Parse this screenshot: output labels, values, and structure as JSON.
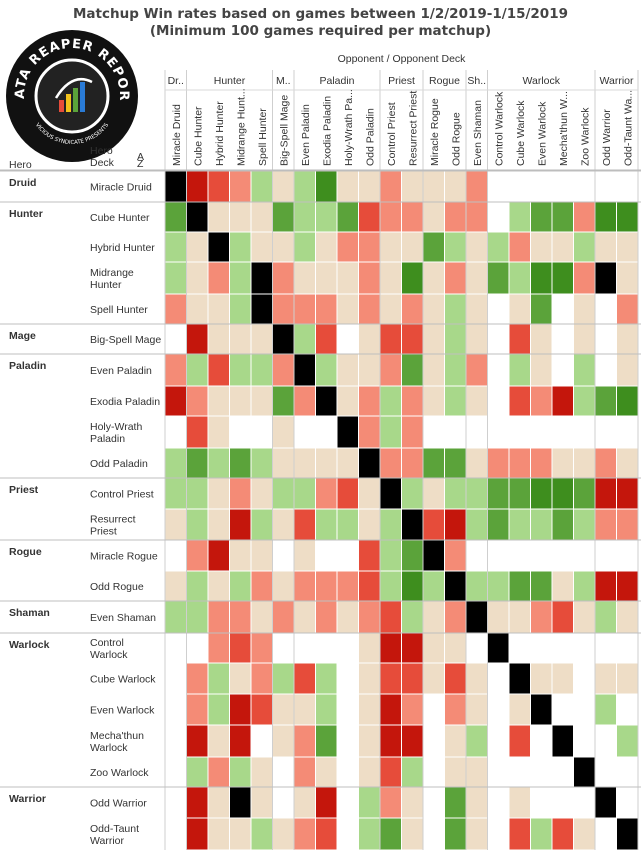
{
  "title_line1": "Matchup Win rates based on games between 1/2/2019-1/15/2019",
  "title_line2": "(Minimum 100 games required per matchup)",
  "logo_text_top": "DATA REAPER REPORT",
  "logo_text_bottom": "VICIOUS SYNDICATE PRESENTS",
  "header": {
    "opponent_caption": "Opponent  /  Opponent Deck",
    "hero_label": "Hero",
    "deck_label": "Hero\nDeck"
  },
  "colors": {
    "black": "#000000",
    "dark_green": "#3e8e1e",
    "green": "#5ba33a",
    "mid_green": "#82c25c",
    "light_green": "#a8d88a",
    "neutral": "#eeddc6",
    "white": "#ffffff",
    "light_red": "#f48b76",
    "red": "#e64c3a",
    "dark_red": "#c4160c"
  },
  "chart_data": {
    "type": "heatmap",
    "title": "Matchup Win rates based on games between 1/2/2019-1/15/2019",
    "subtitle": "(Minimum 100 games required per matchup)",
    "xlabel": "Opponent  /  Opponent Deck",
    "ylabel": "Hero / Hero Deck",
    "color_scale": "win rate category: -3 = strongly unfavored (dark red), 0 = even (tan), 3 = strongly favored (dark green), blank = fewer than 100 games, B = mirror/black",
    "col_groups": [
      {
        "name": "Dr..",
        "count": 1
      },
      {
        "name": "Hunter",
        "count": 4
      },
      {
        "name": "M..",
        "count": 1
      },
      {
        "name": "Paladin",
        "count": 4
      },
      {
        "name": "Priest",
        "count": 2
      },
      {
        "name": "Rogue",
        "count": 2
      },
      {
        "name": "Sh..",
        "count": 1
      },
      {
        "name": "Warlock",
        "count": 5
      },
      {
        "name": "Warrior",
        "count": 2
      }
    ],
    "columns": [
      "Miracle Druid",
      "Cube Hunter",
      "Hybrid Hunter",
      "Midrange Hunt...",
      "Spell Hunter",
      "Big-Spell Mage",
      "Even Paladin",
      "Exodia Paladin",
      "Holy-Wrath Pa...",
      "Odd Paladin",
      "Control Priest",
      "Resurrect Priest",
      "Miracle Rogue",
      "Odd Rogue",
      "Even Shaman",
      "Control Warlock",
      "Cube Warlock",
      "Even Warlock",
      "Mecha'thun W...",
      "Zoo Warlock",
      "Odd Warrior",
      "Odd-Taunt Wa..."
    ],
    "heroes": [
      {
        "name": "Druid",
        "decks": [
          "Miracle Druid"
        ]
      },
      {
        "name": "Hunter",
        "decks": [
          "Cube Hunter",
          "Hybrid Hunter",
          "Midrange\nHunter",
          "Spell Hunter"
        ]
      },
      {
        "name": "Mage",
        "decks": [
          "Big-Spell Mage"
        ]
      },
      {
        "name": "Paladin",
        "decks": [
          "Even Paladin",
          "Exodia Paladin",
          "Holy-Wrath\nPaladin",
          "Odd Paladin"
        ]
      },
      {
        "name": "Priest",
        "decks": [
          "Control Priest",
          "Resurrect\nPriest"
        ]
      },
      {
        "name": "Rogue",
        "decks": [
          "Miracle Rogue",
          "Odd Rogue"
        ]
      },
      {
        "name": "Shaman",
        "decks": [
          "Even Shaman"
        ]
      },
      {
        "name": "Warlock",
        "decks": [
          "Control\nWarlock",
          "Cube Warlock",
          "Even Warlock",
          "Mecha'thun\nWarlock",
          "Zoo Warlock"
        ]
      },
      {
        "name": "Warrior",
        "decks": [
          "Odd Warrior",
          "Odd-Taunt\nWarrior"
        ]
      }
    ],
    "rows": [
      [
        "B",
        -3,
        -2,
        -1,
        1,
        0,
        1,
        3,
        0,
        0,
        -1,
        0,
        0,
        0,
        -1,
        "",
        "",
        "",
        "",
        "",
        "",
        ""
      ],
      [
        2,
        "B",
        0,
        0,
        0,
        2,
        1,
        1,
        2,
        -2,
        -1,
        -1,
        0,
        -1,
        -1,
        "",
        1,
        2,
        2,
        -1,
        3,
        3
      ],
      [
        1,
        0,
        "B",
        1,
        0,
        0,
        1,
        0,
        -1,
        -1,
        0,
        0,
        2,
        1,
        0,
        1,
        -1,
        0,
        0,
        1,
        0,
        0
      ],
      [
        1,
        0,
        -1,
        1,
        "B",
        -1,
        0,
        0,
        0,
        -1,
        0,
        3,
        0,
        -1,
        0,
        2,
        1,
        3,
        3,
        -1,
        "B",
        0
      ],
      [
        -1,
        0,
        0,
        1,
        "B",
        -1,
        -1,
        -1,
        0,
        -1,
        0,
        -1,
        0,
        1,
        0,
        "",
        0,
        2,
        "",
        0,
        "",
        -1
      ],
      [
        "",
        -3,
        0,
        0,
        0,
        "B",
        1,
        -2,
        "",
        0,
        -2,
        -2,
        0,
        1,
        0,
        "",
        -2,
        0,
        "",
        0,
        "",
        0
      ],
      [
        -1,
        1,
        -2,
        1,
        1,
        -1,
        "B",
        1,
        0,
        0,
        -1,
        2,
        0,
        1,
        -1,
        "",
        1,
        0,
        "",
        1,
        "",
        0
      ],
      [
        -3,
        -1,
        0,
        0,
        0,
        2,
        -1,
        "B",
        0,
        -1,
        1,
        -1,
        0,
        1,
        0,
        "",
        -2,
        -1,
        -3,
        1,
        2,
        3
      ],
      [
        "",
        -2,
        0,
        "",
        "",
        0,
        "",
        "",
        "B",
        -1,
        1,
        -1,
        "",
        "",
        "",
        "",
        "",
        "",
        "",
        "",
        "",
        ""
      ],
      [
        1,
        2,
        1,
        2,
        1,
        0,
        0,
        0,
        0,
        "B",
        -1,
        -1,
        2,
        2,
        0,
        -1,
        -1,
        -1,
        0,
        0,
        -1,
        0
      ],
      [
        1,
        1,
        0,
        -1,
        0,
        1,
        1,
        -1,
        -2,
        0,
        "B",
        1,
        0,
        1,
        1,
        2,
        2,
        3,
        3,
        2,
        -3,
        -3
      ],
      [
        0,
        1,
        0,
        -3,
        1,
        0,
        -2,
        1,
        1,
        0,
        1,
        "B",
        -2,
        -3,
        1,
        2,
        1,
        1,
        2,
        1,
        -1,
        -1
      ],
      [
        "",
        -1,
        -3,
        0,
        0,
        "",
        0,
        "",
        "",
        -2,
        1,
        2,
        "B",
        -1,
        "",
        "",
        "",
        "",
        "",
        "",
        "",
        ""
      ],
      [
        0,
        1,
        0,
        1,
        -1,
        0,
        -1,
        -1,
        -1,
        -2,
        1,
        3,
        1,
        "B",
        1,
        1,
        2,
        2,
        0,
        1,
        -3,
        -3
      ],
      [
        1,
        1,
        -1,
        -1,
        0,
        -1,
        0,
        -1,
        0,
        -1,
        -2,
        1,
        0,
        -1,
        "B",
        0,
        0,
        -1,
        -2,
        0,
        1,
        0
      ],
      [
        "",
        "",
        -1,
        -2,
        -1,
        "",
        "",
        "",
        "",
        0,
        -3,
        -3,
        0,
        0,
        "",
        "B",
        "",
        "",
        "",
        "",
        "",
        ""
      ],
      [
        "",
        -1,
        1,
        0,
        -1,
        1,
        -2,
        1,
        "",
        0,
        -2,
        -2,
        0,
        -2,
        0,
        "",
        "B",
        0,
        0,
        "",
        0,
        0
      ],
      [
        "",
        -1,
        1,
        -3,
        -2,
        0,
        0,
        1,
        "",
        0,
        -3,
        -1,
        "",
        -1,
        0,
        "",
        0,
        "B",
        "",
        "",
        1,
        ""
      ],
      [
        "",
        -3,
        0,
        -3,
        "",
        0,
        -1,
        2,
        "",
        0,
        -3,
        -3,
        "",
        0,
        1,
        "",
        -2,
        "",
        "B",
        "",
        "",
        1
      ],
      [
        "",
        1,
        -1,
        1,
        0,
        "",
        -1,
        0,
        "",
        0,
        -2,
        1,
        "",
        0,
        0,
        "",
        "",
        "",
        "",
        "B",
        "",
        ""
      ],
      [
        "",
        -3,
        0,
        "B",
        0,
        "",
        0,
        -3,
        "",
        1,
        -1,
        0,
        "",
        2,
        0,
        "",
        0,
        "",
        "",
        "",
        "B",
        ""
      ],
      [
        "",
        -3,
        0,
        0,
        1,
        0,
        -1,
        -2,
        "",
        1,
        2,
        0,
        "",
        2,
        0,
        "",
        -2,
        1,
        -2,
        0,
        "",
        "B"
      ]
    ]
  }
}
